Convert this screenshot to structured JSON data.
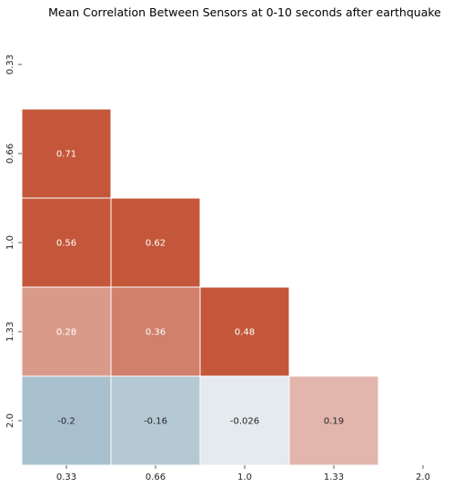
{
  "chart_data": {
    "type": "heatmap",
    "title": "Mean Correlation Between Sensors at 0-10 seconds after earthquake",
    "xlabel": "",
    "ylabel": "",
    "x_categories": [
      "0.33",
      "0.66",
      "1.0",
      "1.33",
      "2.0"
    ],
    "y_categories": [
      "0.33",
      "0.66",
      "1.0",
      "1.33",
      "2.0"
    ],
    "mask": "upper-triangle-including-diagonal",
    "cells": [
      {
        "row": 1,
        "col": 0,
        "value": 0.71,
        "label": "0.71",
        "color": "#c4573a"
      },
      {
        "row": 2,
        "col": 0,
        "value": 0.56,
        "label": "0.56",
        "color": "#c4573a"
      },
      {
        "row": 2,
        "col": 1,
        "value": 0.62,
        "label": "0.62",
        "color": "#c4573a"
      },
      {
        "row": 3,
        "col": 0,
        "value": 0.28,
        "label": "0.28",
        "color": "#d99a8a"
      },
      {
        "row": 3,
        "col": 1,
        "value": 0.36,
        "label": "0.36",
        "color": "#d1806b"
      },
      {
        "row": 3,
        "col": 2,
        "value": 0.48,
        "label": "0.48",
        "color": "#c4573a"
      },
      {
        "row": 4,
        "col": 0,
        "value": -0.2,
        "label": "-0.2",
        "color": "#a8c0ce"
      },
      {
        "row": 4,
        "col": 1,
        "value": -0.16,
        "label": "-0.16",
        "color": "#b5c9d4"
      },
      {
        "row": 4,
        "col": 2,
        "value": -0.026,
        "label": "-0.026",
        "color": "#e4eaed"
      },
      {
        "row": 4,
        "col": 3,
        "value": 0.19,
        "label": "0.19",
        "color": "#e2b5ad"
      }
    ],
    "grid": false,
    "legend": "none"
  }
}
